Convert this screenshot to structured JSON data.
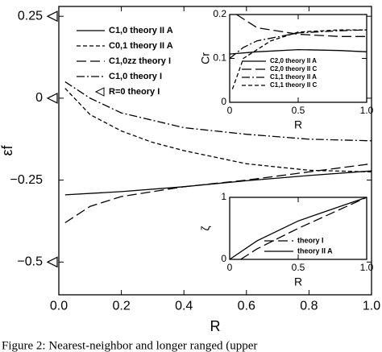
{
  "chart_data": [
    {
      "type": "line",
      "xlabel": "R",
      "ylabel": "εf",
      "xlim": [
        0,
        1
      ],
      "ylim": [
        -0.6,
        0.28
      ],
      "xticks": [
        {
          "value": 0,
          "label": "0.0"
        },
        0.2,
        0.4,
        0.6,
        0.8,
        {
          "value": 1,
          "label": "1.0"
        }
      ],
      "yticks": [
        0.25,
        0,
        {
          "value": -0.25,
          "label": "−0.25"
        },
        {
          "value": -0.5,
          "label": "−0.5"
        }
      ],
      "legend": "upper left",
      "series": [
        {
          "name": "C1,0 theory II A",
          "color": "#000000",
          "dash": "solid",
          "x": [
            0.02,
            0.2,
            0.4,
            0.6,
            0.8,
            1.0
          ],
          "values": [
            -0.295,
            -0.285,
            -0.27,
            -0.252,
            -0.236,
            -0.222
          ]
        },
        {
          "name": "C0,1 theory II A",
          "color": "#000000",
          "dash": "dashed",
          "x": [
            0.02,
            0.1,
            0.2,
            0.3,
            0.4,
            0.6,
            0.8,
            1.0
          ],
          "values": [
            0.03,
            -0.05,
            -0.1,
            -0.135,
            -0.16,
            -0.2,
            -0.22,
            -0.225
          ]
        },
        {
          "name": "C1,0zz theory I",
          "color": "#000000",
          "dash": "longdash",
          "x": [
            0.02,
            0.1,
            0.2,
            0.4,
            0.6,
            0.8,
            1.0
          ],
          "values": [
            -0.38,
            -0.33,
            -0.3,
            -0.27,
            -0.25,
            -0.225,
            -0.2
          ]
        },
        {
          "name": "C1,0 theory I",
          "color": "#000000",
          "dash": "dashdot",
          "x": [
            0.02,
            0.1,
            0.2,
            0.4,
            0.6,
            0.8,
            1.0
          ],
          "values": [
            0.05,
            0.0,
            -0.045,
            -0.09,
            -0.11,
            -0.125,
            -0.13
          ]
        },
        {
          "name": "R=0 theory I",
          "color": "#000000",
          "marker": "triangle",
          "x": [
            0,
            0,
            0
          ],
          "values": [
            0.25,
            0,
            -0.5
          ]
        }
      ]
    },
    {
      "type": "line",
      "xlabel": "R",
      "ylabel": "Cr",
      "xlim": [
        0,
        1
      ],
      "ylim": [
        0,
        0.2
      ],
      "xticks": [
        0,
        0.5,
        {
          "value": 1,
          "label": "1.0"
        }
      ],
      "yticks": [
        0,
        0.1,
        0.2
      ],
      "legend": "lower right",
      "series": [
        {
          "name": "C2,0 theory II A",
          "color": "#000000",
          "dash": "solid",
          "x": [
            0.0,
            0.2,
            0.5,
            0.8,
            1.0
          ],
          "values": [
            0.11,
            0.115,
            0.12,
            0.118,
            0.115
          ]
        },
        {
          "name": "C2,0 theory II C",
          "color": "#000000",
          "dash": "longdash",
          "x": [
            0.05,
            0.2,
            0.5,
            0.8,
            1.0
          ],
          "values": [
            0.2,
            0.17,
            0.155,
            0.15,
            0.15
          ]
        },
        {
          "name": "C1,1 theory II A",
          "color": "#000000",
          "dash": "dashdot",
          "x": [
            0.0,
            0.1,
            0.2,
            0.5,
            0.8,
            1.0
          ],
          "values": [
            0.1,
            0.125,
            0.14,
            0.158,
            0.163,
            0.165
          ]
        },
        {
          "name": "C1,1 theory II C",
          "color": "#000000",
          "dash": "dashed",
          "x": [
            0.02,
            0.1,
            0.3,
            0.5,
            0.8,
            1.0
          ],
          "values": [
            0.03,
            0.1,
            0.14,
            0.16,
            0.165,
            0.165
          ]
        }
      ]
    },
    {
      "type": "line",
      "xlabel": "R",
      "ylabel": "ζ",
      "xlim": [
        0,
        1
      ],
      "ylim": [
        0,
        1
      ],
      "xticks": [
        0,
        0.5,
        {
          "value": 1,
          "label": "1.0"
        }
      ],
      "yticks": [
        0,
        1
      ],
      "legend": "lower right",
      "series": [
        {
          "name": "theory I",
          "color": "#000000",
          "dash": "longdash",
          "x": [
            0.08,
            0.2,
            0.5,
            0.8,
            1.0
          ],
          "values": [
            0.0,
            0.17,
            0.5,
            0.8,
            1.0
          ]
        },
        {
          "name": "theory II A",
          "color": "#000000",
          "dash": "solid",
          "x": [
            0.0,
            0.2,
            0.5,
            0.8,
            1.0
          ],
          "values": [
            0.0,
            0.3,
            0.62,
            0.85,
            1.0
          ]
        }
      ]
    }
  ],
  "caption": "Figure 2: Nearest-neighbor and longer ranged (upper"
}
